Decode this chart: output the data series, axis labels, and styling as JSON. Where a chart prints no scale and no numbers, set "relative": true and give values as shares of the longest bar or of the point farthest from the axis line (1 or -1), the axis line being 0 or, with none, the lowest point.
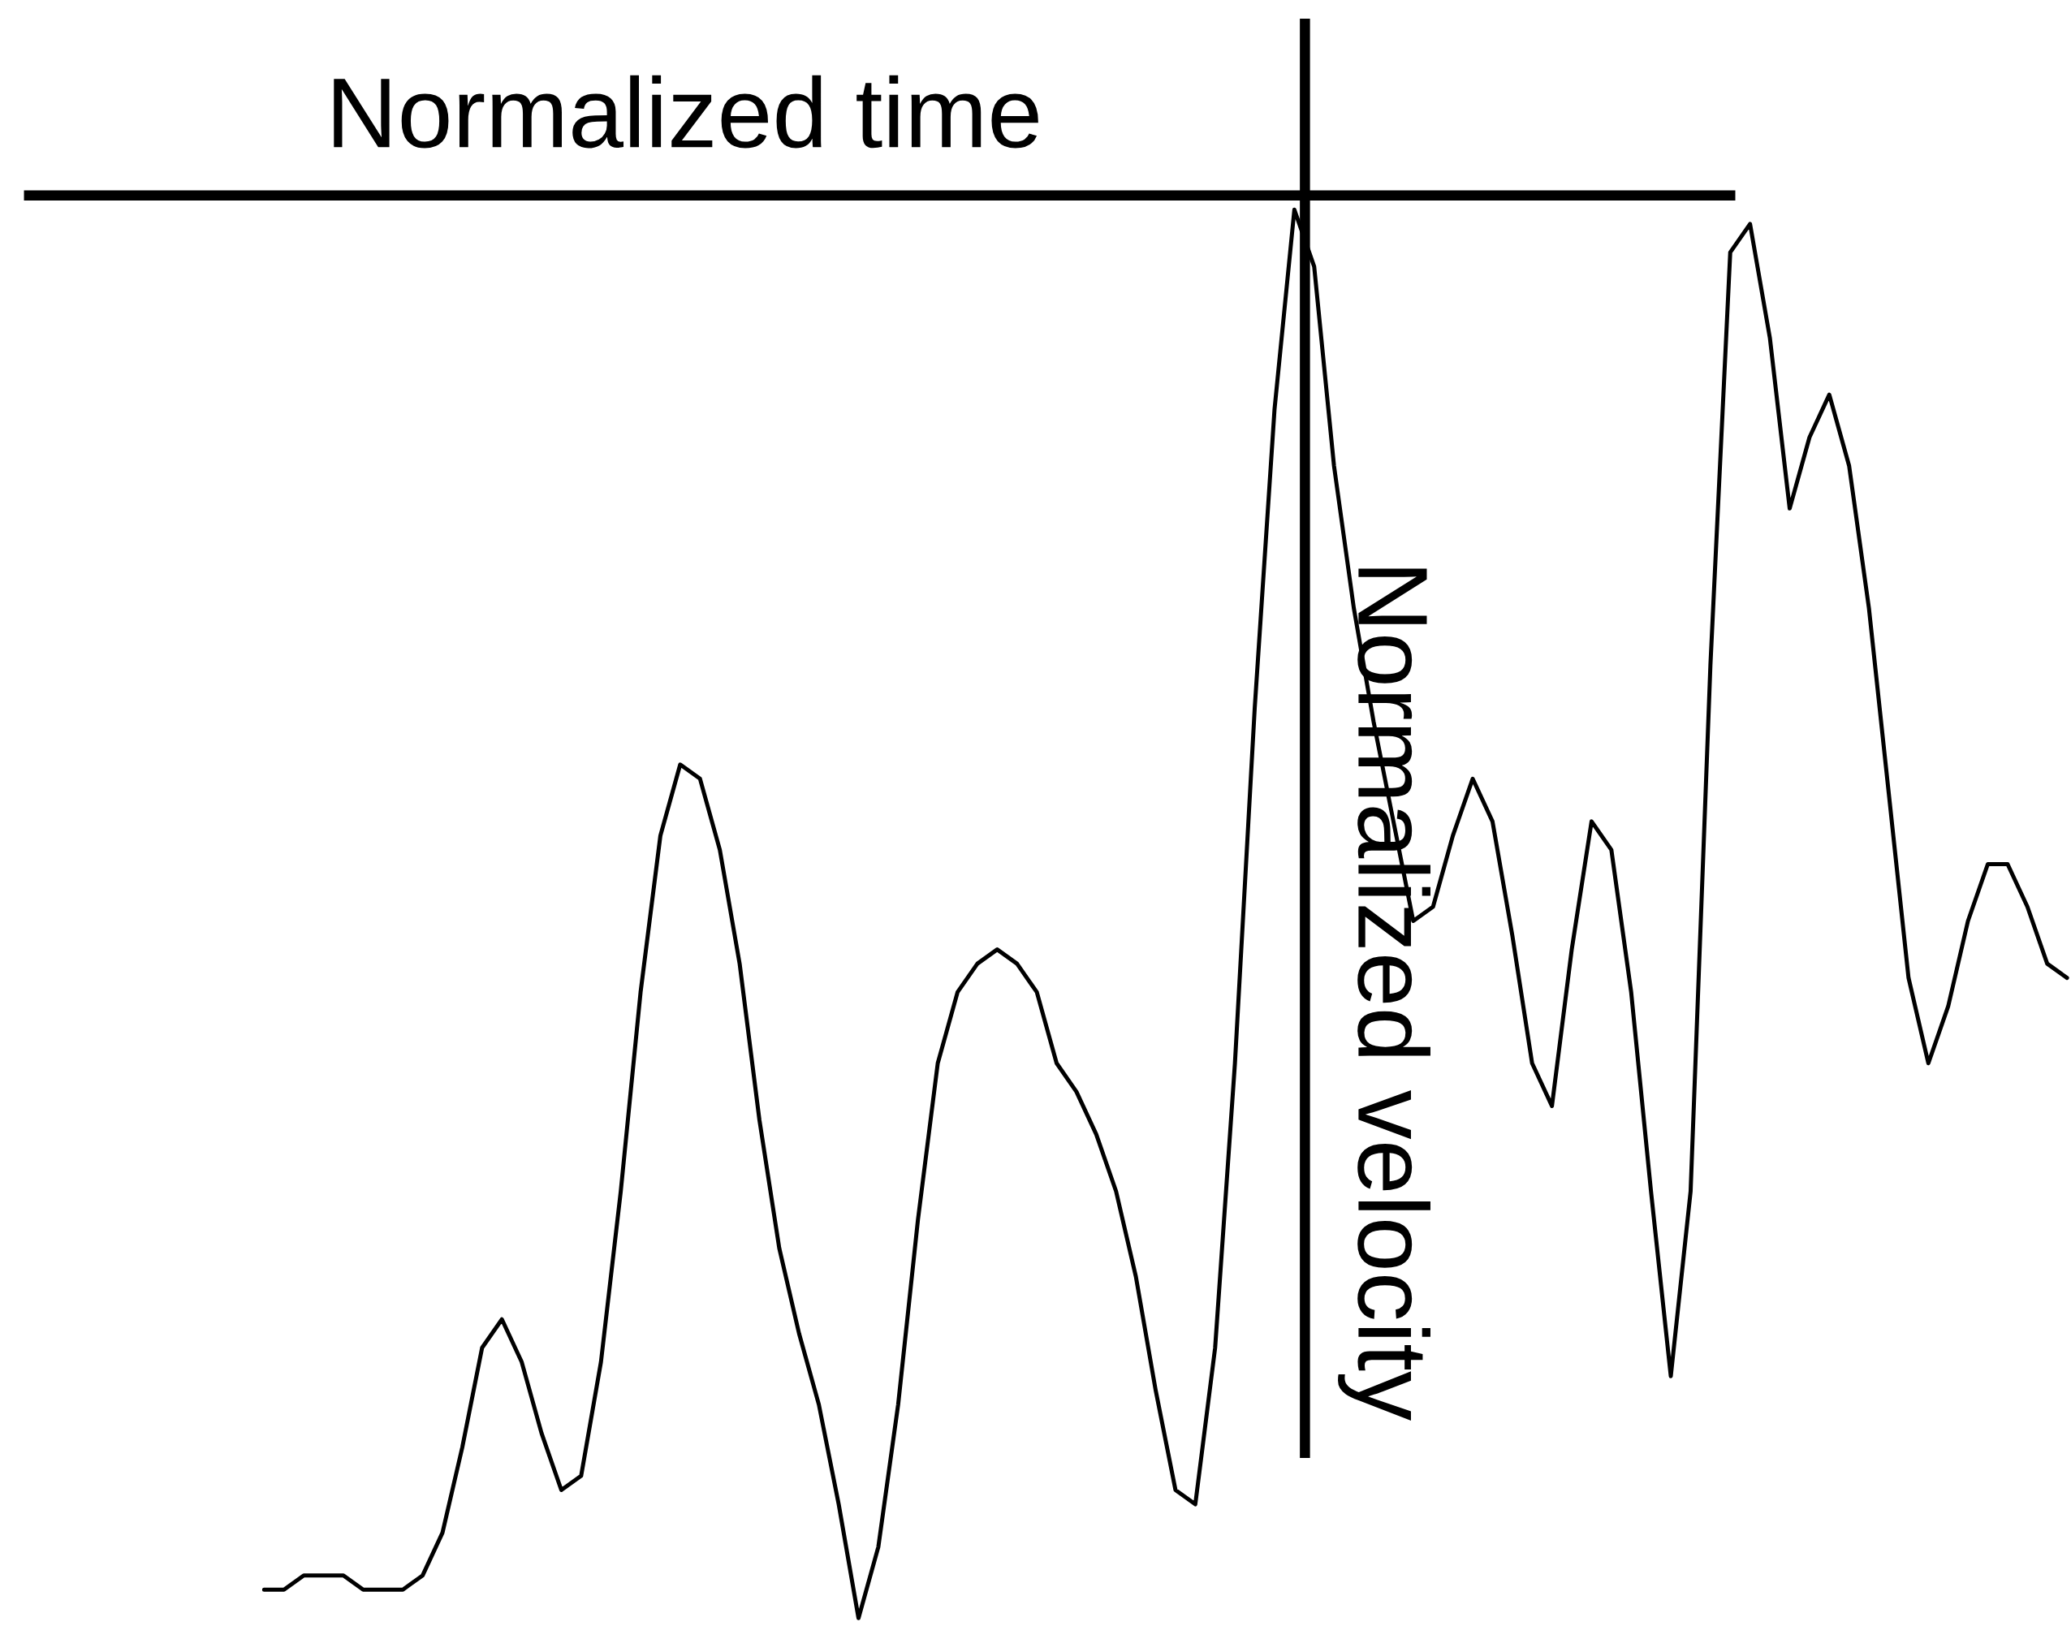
{
  "chart_data": {
    "type": "line",
    "relative": true,
    "xlabel": "Normalized time",
    "ylabel": "Normalized velocity",
    "categories": [
      null,
      null,
      null,
      null,
      null,
      null,
      null,
      null,
      null,
      null,
      null,
      null,
      null,
      null,
      null,
      null,
      null,
      null,
      null,
      null,
      null,
      null,
      null,
      null,
      null,
      null,
      null,
      null,
      null,
      null,
      null,
      null,
      null,
      null,
      null,
      null,
      null,
      null,
      null,
      null,
      null,
      null,
      null,
      null,
      null,
      null,
      null,
      null,
      null,
      null,
      null,
      null,
      null,
      null,
      null,
      null,
      null,
      null,
      null,
      null,
      null,
      null,
      null,
      null,
      null,
      null,
      null,
      null,
      null,
      null,
      null,
      null,
      null,
      null,
      null,
      null,
      null,
      null,
      null,
      null,
      null,
      null,
      null,
      null,
      null,
      null,
      null,
      null,
      null,
      null,
      null,
      null
    ],
    "series": [
      {
        "color": "#000000",
        "values": [
          -0.98,
          -0.98,
          -0.97,
          -0.97,
          -0.97,
          -0.98,
          -0.98,
          -0.98,
          -0.97,
          -0.94,
          -0.88,
          -0.81,
          -0.79,
          -0.82,
          -0.87,
          -0.91,
          -0.9,
          -0.82,
          -0.7,
          -0.56,
          -0.45,
          -0.4,
          -0.41,
          -0.46,
          -0.54,
          -0.65,
          -0.74,
          -0.8,
          -0.85,
          -0.92,
          -1,
          -0.95,
          -0.85,
          -0.72,
          -0.61,
          -0.56,
          -0.54,
          -0.53,
          -0.54,
          -0.56,
          -0.61,
          -0.63,
          -0.66,
          -0.7,
          -0.76,
          -0.84,
          -0.91,
          -0.92,
          -0.81,
          -0.61,
          -0.36,
          -0.15,
          -0.01,
          -0.05,
          -0.19,
          -0.29,
          -0.37,
          -0.44,
          -0.51,
          -0.5,
          -0.45,
          -0.41,
          -0.44,
          -0.52,
          -0.61,
          -0.64,
          -0.53,
          -0.44,
          -0.46,
          -0.56,
          -0.7,
          -0.83,
          -0.7,
          -0.33,
          -0.04,
          -0.02,
          -0.1,
          -0.22,
          -0.17,
          -0.14,
          -0.19,
          -0.29,
          -0.42,
          -0.55,
          -0.61,
          -0.57,
          -0.51,
          -0.47,
          -0.47,
          -0.5,
          -0.54,
          -0.55
        ]
      }
    ],
    "marker": "none",
    "line_style": "solid"
  }
}
